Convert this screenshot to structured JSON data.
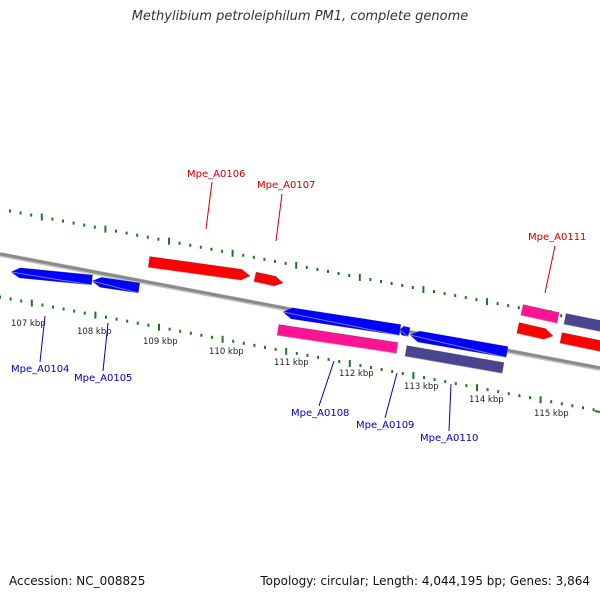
{
  "title": "Methylibium petroleiphilum PM1, complete genome",
  "footer": {
    "accession": "Accession: NC_008825",
    "topology": "Topology: circular; Length: 4,044,195 bp; Genes: 3,864"
  },
  "colors": {
    "backbone": "#8a8a8a",
    "tick": "#1a7a1a",
    "red_label": "#cc0000",
    "blue_label": "#0000bb",
    "red": "#ff0000",
    "blue": "#0000ff",
    "pink": "#ff1493",
    "slate": "#4b4590"
  },
  "scale_ticks": [
    {
      "label": "107 kbp"
    },
    {
      "label": "108 kbp"
    },
    {
      "label": "109 kbp"
    },
    {
      "label": "110 kbp"
    },
    {
      "label": "111 kbp"
    },
    {
      "label": "112 kbp"
    },
    {
      "label": "113 kbp"
    },
    {
      "label": "114 kbp"
    },
    {
      "label": "115 kbp"
    }
  ],
  "gene_labels": [
    {
      "id": "Mpe_A0104",
      "color": "blue"
    },
    {
      "id": "Mpe_A0105",
      "color": "blue"
    },
    {
      "id": "Mpe_A0106",
      "color": "red"
    },
    {
      "id": "Mpe_A0107",
      "color": "red"
    },
    {
      "id": "Mpe_A0108",
      "color": "blue"
    },
    {
      "id": "Mpe_A0109",
      "color": "blue"
    },
    {
      "id": "Mpe_A0110",
      "color": "blue"
    },
    {
      "id": "Mpe_A0111",
      "color": "red"
    }
  ]
}
